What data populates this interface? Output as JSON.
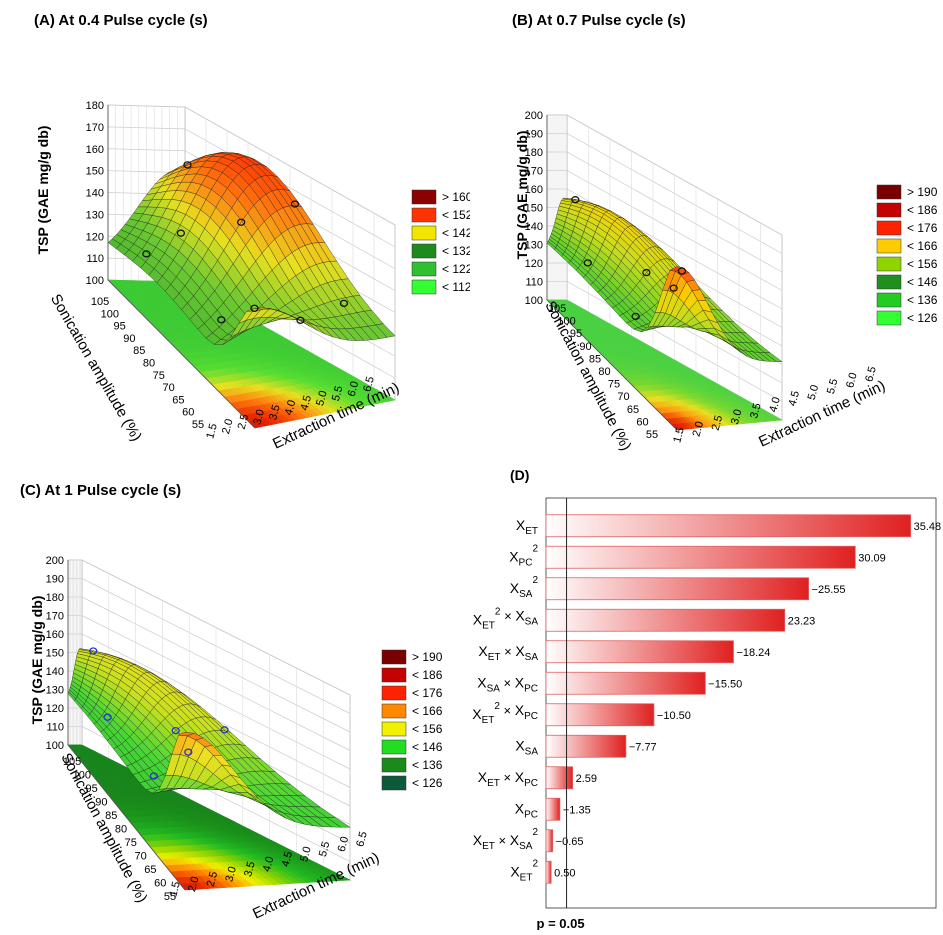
{
  "surface_panels": [
    {
      "title": "(A) At 0.4 Pulse cycle (s)",
      "zlabel": "TSP (GAE mg/g db)",
      "ylabel": "Sonication amplitude (%)",
      "xlabel": "Extraction time (min)",
      "z_ticks": [
        "100",
        "110",
        "120",
        "130",
        "140",
        "150",
        "160",
        "170",
        "180"
      ],
      "y_ticks": [
        "105",
        "100",
        "95",
        "90",
        "85",
        "80",
        "75",
        "70",
        "65",
        "60",
        "55"
      ],
      "x_ticks": [
        "1.5",
        "2.0",
        "2.5",
        "3.0",
        "3.5",
        "4.0",
        "4.5",
        "5.0",
        "5.5",
        "6.0",
        "6.5"
      ],
      "legend": [
        {
          "label": "> 160",
          "color": "#8b0000"
        },
        {
          "label": "< 152",
          "color": "#ff3300"
        },
        {
          "label": "< 142",
          "color": "#f2e600"
        },
        {
          "label": "< 132",
          "color": "#1e8a1e"
        },
        {
          "label": "< 122",
          "color": "#2fbf2f"
        },
        {
          "label": "< 112",
          "color": "#33ff33"
        }
      ]
    },
    {
      "title": "(B) At 0.7 Pulse cycle (s)",
      "zlabel": "TSP (GAE mg/g db)",
      "ylabel": "Sonication amplitude (%)",
      "xlabel": "Extraction time (min)",
      "z_ticks": [
        "100",
        "110",
        "120",
        "130",
        "140",
        "150",
        "160",
        "170",
        "180",
        "190",
        "200"
      ],
      "y_ticks": [
        "105",
        "100",
        "95",
        "90",
        "85",
        "80",
        "75",
        "70",
        "65",
        "60",
        "55"
      ],
      "x_ticks": [
        "1.5",
        "2.0",
        "2.5",
        "3.0",
        "3.5",
        "4.0",
        "4.5",
        "5.0",
        "5.5",
        "6.0",
        "6.5"
      ],
      "legend": [
        {
          "label": "> 190",
          "color": "#7a0000"
        },
        {
          "label": "< 186",
          "color": "#c40000"
        },
        {
          "label": "< 176",
          "color": "#ff2200"
        },
        {
          "label": "< 166",
          "color": "#ffcc00"
        },
        {
          "label": "< 156",
          "color": "#8fd400"
        },
        {
          "label": "< 146",
          "color": "#1f8f1f"
        },
        {
          "label": "< 136",
          "color": "#22cc22"
        },
        {
          "label": "< 126",
          "color": "#33ff33"
        }
      ]
    },
    {
      "title": "(C) At 1 Pulse cycle (s)",
      "zlabel": "TSP (GAE mg/g db)",
      "ylabel": "Sonication amplitude (%)",
      "xlabel": "Extraction time (min)",
      "z_ticks": [
        "100",
        "110",
        "120",
        "130",
        "140",
        "150",
        "160",
        "170",
        "180",
        "190",
        "200"
      ],
      "y_ticks": [
        "105",
        "100",
        "95",
        "90",
        "85",
        "80",
        "75",
        "70",
        "65",
        "60",
        "55"
      ],
      "x_ticks": [
        "1.5",
        "2.0",
        "2.5",
        "3.0",
        "3.5",
        "4.0",
        "4.5",
        "5.0",
        "5.5",
        "6.0",
        "6.5"
      ],
      "legend": [
        {
          "label": "> 190",
          "color": "#7a0000"
        },
        {
          "label": "< 186",
          "color": "#c40000"
        },
        {
          "label": "< 176",
          "color": "#ff2200"
        },
        {
          "label": "< 166",
          "color": "#ff8800"
        },
        {
          "label": "< 156",
          "color": "#f0f000"
        },
        {
          "label": "< 146",
          "color": "#22dd22"
        },
        {
          "label": "< 136",
          "color": "#1a8a1a"
        },
        {
          "label": "< 126",
          "color": "#0b5a3a"
        }
      ]
    }
  ],
  "chart_data": {
    "type": "bar",
    "title": "(D)",
    "orientation": "horizontal",
    "categories": [
      {
        "base": "X",
        "sub": "ET",
        "sup": ""
      },
      {
        "base": "X",
        "sub": "PC",
        "sup": "2"
      },
      {
        "base": "X",
        "sub": "SA",
        "sup": "2"
      },
      {
        "base": "X",
        "sub": "ET",
        "sup": "2",
        "op": " × ",
        "base2": "X",
        "sub2": "SA",
        "sup2": ""
      },
      {
        "base": "X",
        "sub": "ET",
        "sup": "",
        "op": " × ",
        "base2": "X",
        "sub2": "SA",
        "sup2": ""
      },
      {
        "base": "X",
        "sub": "SA",
        "sup": "",
        "op": " × ",
        "base2": "X",
        "sub2": "PC",
        "sup2": ""
      },
      {
        "base": "X",
        "sub": "ET",
        "sup": "2",
        "op": " × ",
        "base2": "X",
        "sub2": "PC",
        "sup2": ""
      },
      {
        "base": "X",
        "sub": "SA",
        "sup": ""
      },
      {
        "base": "X",
        "sub": "ET",
        "sup": "",
        "op": " × ",
        "base2": "X",
        "sub2": "PC",
        "sup2": ""
      },
      {
        "base": "X",
        "sub": "PC",
        "sup": ""
      },
      {
        "base": "X",
        "sub": "ET",
        "sup": "",
        "op": " × ",
        "base2": "X",
        "sub2": "SA",
        "sup2": "2"
      },
      {
        "base": "X",
        "sub": "ET",
        "sup": "2"
      }
    ],
    "value_labels": [
      "35.48",
      "30.09",
      "−25.55",
      "23.23",
      "−18.24",
      "−15.50",
      "−10.50",
      "−7.77",
      "2.59",
      "−1.35",
      "−0.65",
      "0.50"
    ],
    "values": [
      35.48,
      30.09,
      25.55,
      23.23,
      18.24,
      15.5,
      10.5,
      7.77,
      2.59,
      1.35,
      0.65,
      0.5
    ],
    "reference_line": {
      "label": "p = 0.05",
      "value": 2.0
    },
    "xlim": [
      0,
      36
    ],
    "bar_color": "#e02020"
  }
}
